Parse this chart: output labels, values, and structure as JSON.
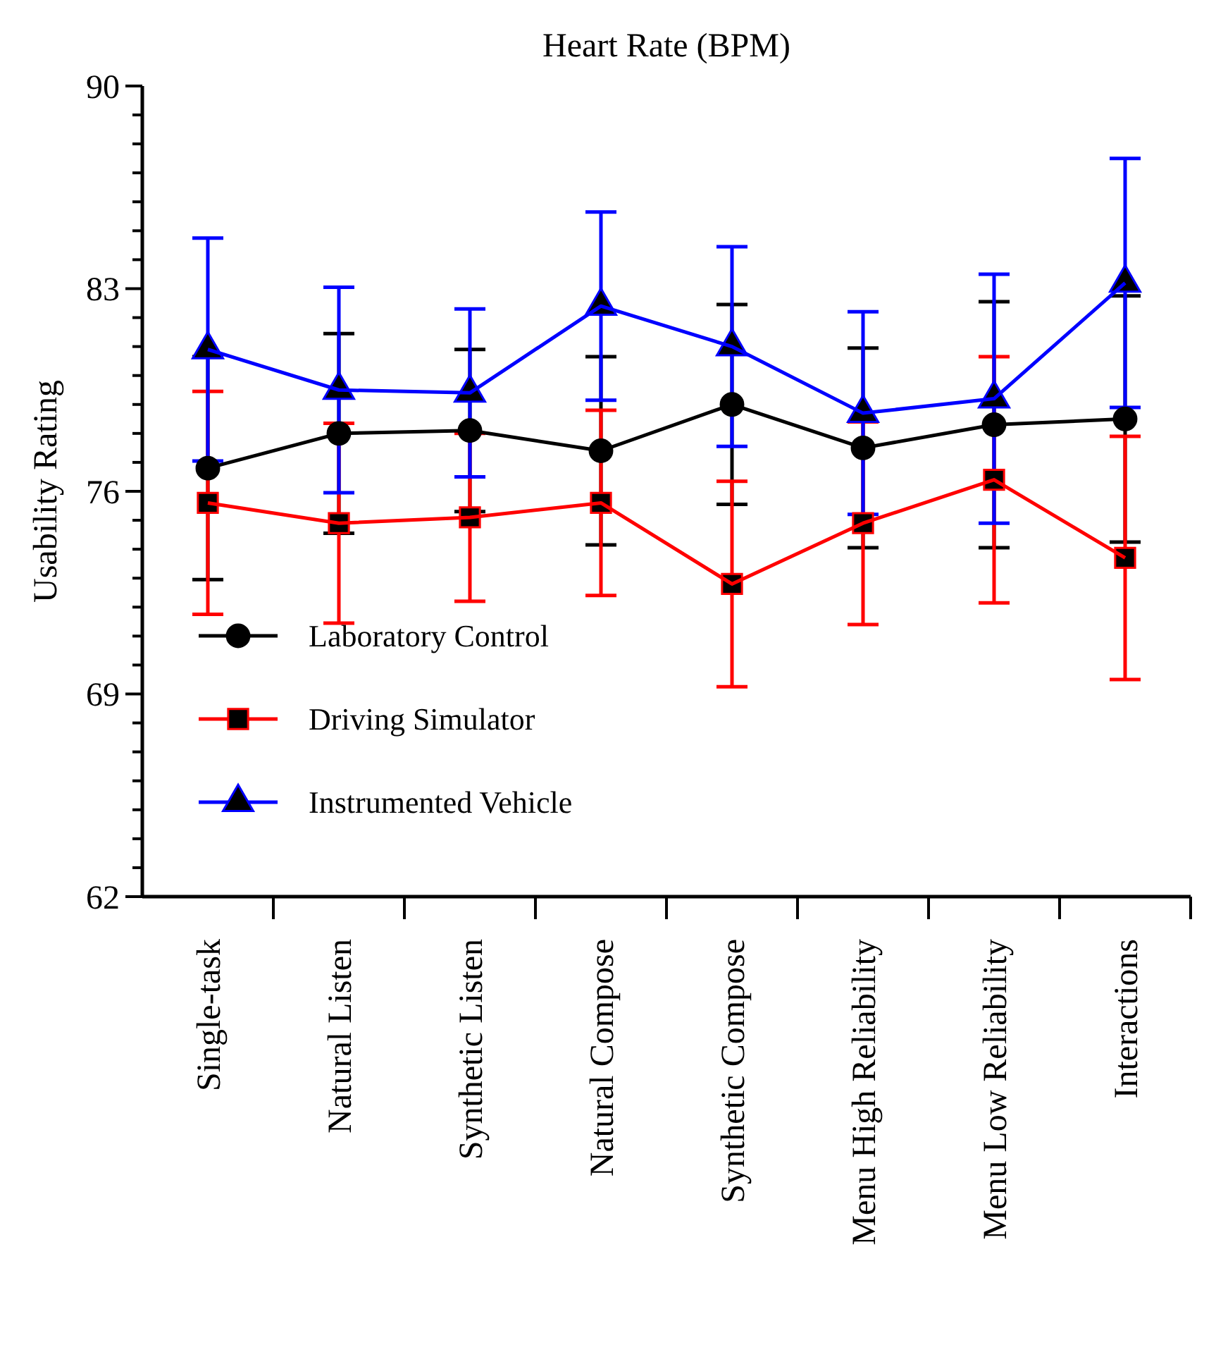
{
  "chart_data": {
    "type": "line",
    "title": "Heart Rate (BPM)",
    "ylabel": "Usability Rating",
    "categories": [
      "Single-task",
      "Natural Listen",
      "Synthetic Listen",
      "Natural Compose",
      "Synthetic Compose",
      "Menu High Reliability",
      "Menu Low Reliability",
      "Interactions"
    ],
    "series": [
      {
        "name": "Laboratory Control",
        "color": "#000000",
        "marker": "circle",
        "values": [
          76.8,
          78.0,
          78.1,
          77.4,
          79.0,
          77.5,
          78.3,
          78.5
        ],
        "errors": [
          3.85,
          3.45,
          2.8,
          3.25,
          3.45,
          3.45,
          4.25,
          4.25
        ]
      },
      {
        "name": "Driving Simulator",
        "color": "#ff0000",
        "marker": "square",
        "values": [
          75.6,
          74.9,
          75.1,
          75.6,
          72.8,
          74.9,
          76.4,
          73.7
        ],
        "errors": [
          3.85,
          3.45,
          2.9,
          3.2,
          3.55,
          3.5,
          4.25,
          4.2
        ]
      },
      {
        "name": "Instrumented Vehicle",
        "color": "#0000ff",
        "marker": "triangle",
        "values": [
          80.9,
          79.5,
          79.4,
          82.4,
          81.0,
          78.7,
          79.2,
          83.2
        ],
        "errors": [
          3.85,
          3.55,
          2.9,
          3.25,
          3.45,
          3.5,
          4.3,
          4.3
        ]
      }
    ],
    "ylim": [
      62,
      90
    ],
    "yticks": [
      62,
      {
        "value": 63,
        "label": null
      },
      {
        "value": 64,
        "label": null
      },
      {
        "value": 65,
        "label": null
      },
      {
        "value": 66,
        "label": null
      },
      {
        "value": 67,
        "label": null
      },
      {
        "value": 68,
        "label": null
      },
      69,
      {
        "value": 70,
        "label": null
      },
      {
        "value": 71,
        "label": null
      },
      {
        "value": 72,
        "label": null
      },
      {
        "value": 73,
        "label": null
      },
      {
        "value": 74,
        "label": null
      },
      {
        "value": 75,
        "label": null
      },
      76,
      {
        "value": 77,
        "label": null
      },
      {
        "value": 78,
        "label": null
      },
      {
        "value": 79,
        "label": null
      },
      {
        "value": 80,
        "label": null
      },
      {
        "value": 81,
        "label": null
      },
      {
        "value": 82,
        "label": null
      },
      83,
      {
        "value": 84,
        "label": null
      },
      {
        "value": 85,
        "label": null
      },
      {
        "value": 86,
        "label": null
      },
      {
        "value": 87,
        "label": null
      },
      {
        "value": 88,
        "label": null
      },
      {
        "value": 89,
        "label": null
      },
      90
    ],
    "grid": false,
    "legend": "bottom left",
    "line_style": "solid"
  }
}
